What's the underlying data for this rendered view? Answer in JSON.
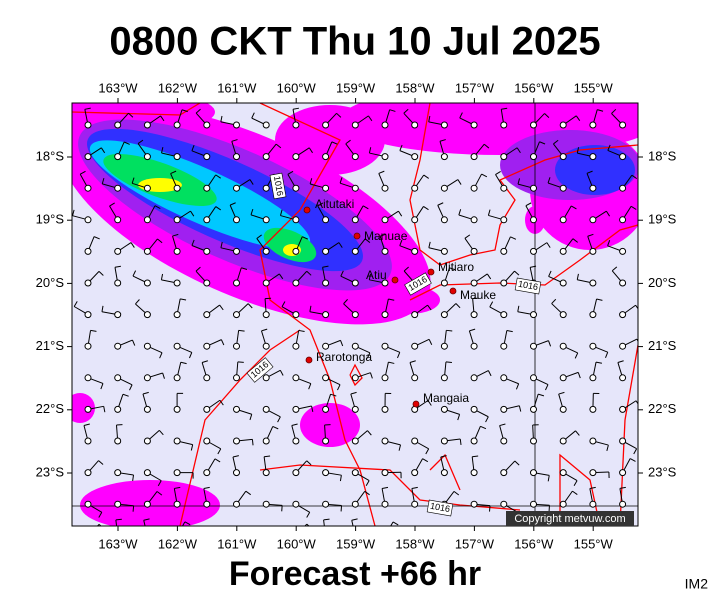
{
  "title": "0800 CKT Thu 10 Jul 2025",
  "forecast": "Forecast +66 hr",
  "image_id": "IM2",
  "copyright": "Copyright metvuw.com",
  "lon_labels": [
    "163°W",
    "162°W",
    "161°W",
    "160°W",
    "159°W",
    "158°W",
    "157°W",
    "156°W",
    "155°W"
  ],
  "lat_labels": [
    "18°S",
    "19°S",
    "20°S",
    "21°S",
    "22°S",
    "23°S"
  ],
  "places": [
    {
      "name": "Aitutaki"
    },
    {
      "name": "Manuae"
    },
    {
      "name": "Atiu"
    },
    {
      "name": "Mitiaro"
    },
    {
      "name": "Mauke"
    },
    {
      "name": "Rarotonga"
    },
    {
      "name": "Mangaia"
    }
  ],
  "isobar_labels": [
    "1016",
    "1016",
    "1016",
    "1016",
    "1016"
  ]
}
